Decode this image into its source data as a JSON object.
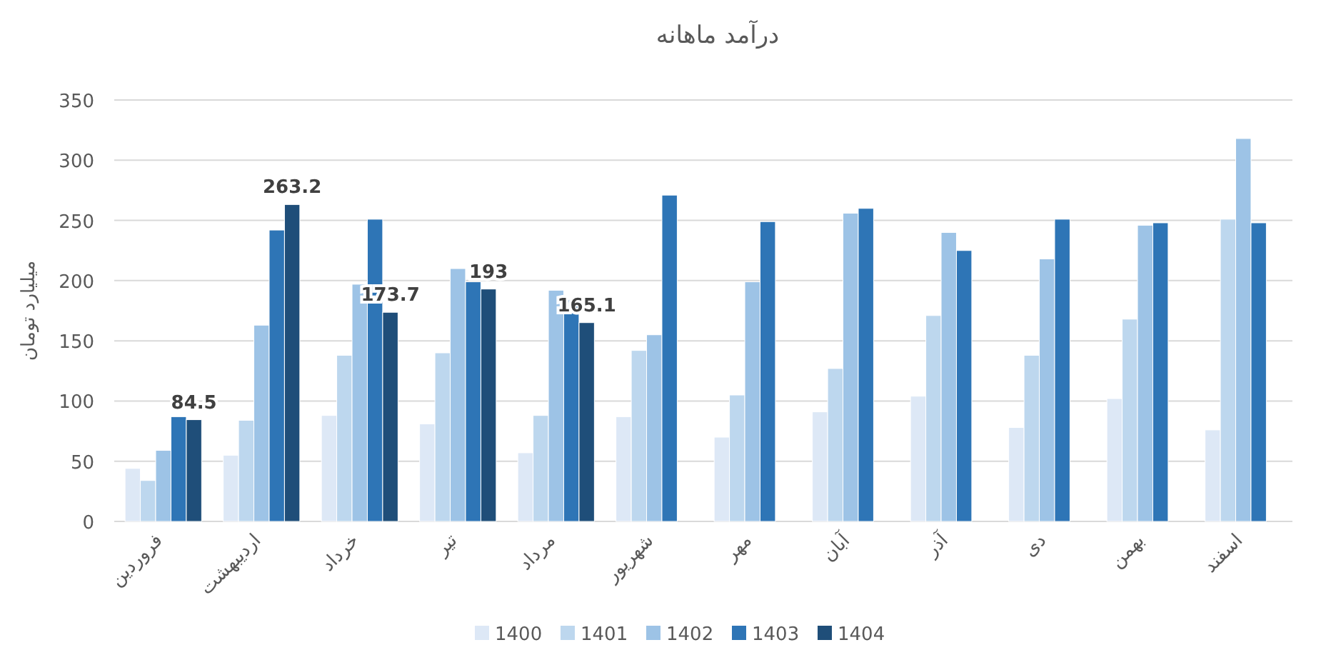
{
  "chart_data": {
    "type": "bar",
    "title": "درآمد ماهانه",
    "ylabel": "میلیارد تومان",
    "categories": [
      "فروردین",
      "اردیبهشت",
      "خرداد",
      "تیر",
      "مرداد",
      "شهریور",
      "مهر",
      "آبان",
      "آذر",
      "دی",
      "بهمن",
      "اسفند"
    ],
    "ylim": [
      0,
      350
    ],
    "yticks": [
      0,
      50,
      100,
      150,
      200,
      250,
      300,
      350
    ],
    "grid": "y",
    "legend": "bottom",
    "series": [
      {
        "name": "1400",
        "color": "#dde8f6",
        "values": [
          44,
          55,
          88,
          81,
          57,
          87,
          70,
          91,
          104,
          78,
          102,
          76
        ]
      },
      {
        "name": "1401",
        "color": "#bdd7ee",
        "values": [
          34,
          84,
          138,
          140,
          88,
          142,
          105,
          127,
          171,
          138,
          168,
          251
        ]
      },
      {
        "name": "1402",
        "color": "#9dc3e6",
        "values": [
          59,
          163,
          197,
          210,
          192,
          155,
          199,
          256,
          240,
          218,
          246,
          318
        ]
      },
      {
        "name": "1403",
        "color": "#2e75b6",
        "values": [
          87,
          242,
          251,
          199,
          184,
          271,
          249,
          260,
          225,
          251,
          248,
          248
        ]
      },
      {
        "name": "1404",
        "color": "#1f4e79",
        "values": [
          84.5,
          263.2,
          173.7,
          193,
          165.1,
          null,
          null,
          null,
          null,
          null,
          null,
          null
        ],
        "value_labels": [
          "84.5",
          "263.2",
          "173.7",
          "193",
          "165.1",
          null,
          null,
          null,
          null,
          null,
          null,
          null
        ]
      }
    ]
  }
}
